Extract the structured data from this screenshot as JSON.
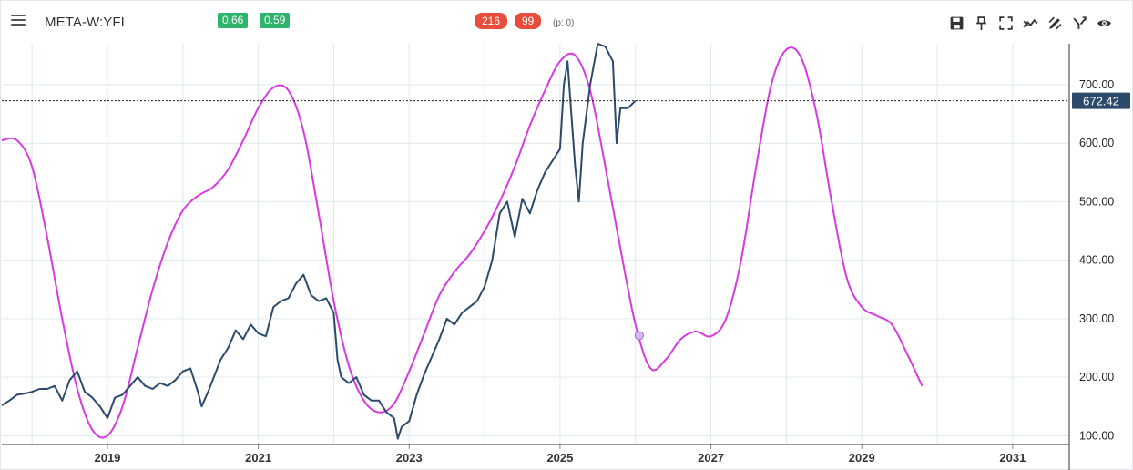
{
  "toolbar": {
    "symbol": "META-W:YFI",
    "badge_a": "0.66",
    "badge_b": "0.59",
    "badge_c": "216",
    "badge_d": "99",
    "p_count": "(p: 0)",
    "icons": [
      "save-icon",
      "pin-icon",
      "fullscreen-icon",
      "trend-icon",
      "draw-icon",
      "fork-icon",
      "eye-icon"
    ]
  },
  "colors": {
    "price": "#2c4a6b",
    "cycle": "#d63ae0",
    "badge_green": "#2fb46b",
    "badge_red": "#e74c3c",
    "last_price_label": "#2c4a6b",
    "grid": "#dde9ee"
  },
  "chart_data": {
    "type": "line",
    "title": "",
    "xlabel": "",
    "ylabel": "",
    "xlim": [
      2017.6,
      2031.75
    ],
    "ylim": [
      85,
      770
    ],
    "y_ticks": [
      "100.00",
      "200.00",
      "300.00",
      "400.00",
      "500.00",
      "600.00",
      "700.00"
    ],
    "x_ticks": [
      "2019",
      "2021",
      "2023",
      "2025",
      "2027",
      "2029",
      "2031"
    ],
    "last_price": "672.42",
    "series": [
      {
        "type": "price",
        "points": [
          [
            2017.6,
            152
          ],
          [
            2017.7,
            160
          ],
          [
            2017.8,
            170
          ],
          [
            2017.9,
            172
          ],
          [
            2018.0,
            175
          ],
          [
            2018.1,
            180
          ],
          [
            2018.2,
            180
          ],
          [
            2018.3,
            185
          ],
          [
            2018.4,
            160
          ],
          [
            2018.5,
            195
          ],
          [
            2018.6,
            210
          ],
          [
            2018.7,
            175
          ],
          [
            2018.8,
            165
          ],
          [
            2018.9,
            150
          ],
          [
            2019.0,
            130
          ],
          [
            2019.1,
            165
          ],
          [
            2019.2,
            170
          ],
          [
            2019.3,
            185
          ],
          [
            2019.4,
            200
          ],
          [
            2019.5,
            185
          ],
          [
            2019.6,
            180
          ],
          [
            2019.7,
            190
          ],
          [
            2019.8,
            185
          ],
          [
            2019.9,
            195
          ],
          [
            2020.0,
            210
          ],
          [
            2020.1,
            215
          ],
          [
            2020.2,
            175
          ],
          [
            2020.25,
            150
          ],
          [
            2020.35,
            180
          ],
          [
            2020.5,
            230
          ],
          [
            2020.6,
            250
          ],
          [
            2020.7,
            280
          ],
          [
            2020.8,
            265
          ],
          [
            2020.9,
            290
          ],
          [
            2021.0,
            275
          ],
          [
            2021.1,
            270
          ],
          [
            2021.2,
            320
          ],
          [
            2021.3,
            330
          ],
          [
            2021.4,
            335
          ],
          [
            2021.5,
            360
          ],
          [
            2021.6,
            375
          ],
          [
            2021.7,
            340
          ],
          [
            2021.8,
            330
          ],
          [
            2021.9,
            335
          ],
          [
            2022.0,
            310
          ],
          [
            2022.05,
            230
          ],
          [
            2022.1,
            200
          ],
          [
            2022.2,
            190
          ],
          [
            2022.3,
            200
          ],
          [
            2022.4,
            170
          ],
          [
            2022.5,
            160
          ],
          [
            2022.6,
            160
          ],
          [
            2022.7,
            140
          ],
          [
            2022.8,
            130
          ],
          [
            2022.85,
            95
          ],
          [
            2022.9,
            115
          ],
          [
            2023.0,
            125
          ],
          [
            2023.1,
            170
          ],
          [
            2023.2,
            205
          ],
          [
            2023.3,
            235
          ],
          [
            2023.4,
            265
          ],
          [
            2023.5,
            300
          ],
          [
            2023.6,
            290
          ],
          [
            2023.7,
            310
          ],
          [
            2023.8,
            320
          ],
          [
            2023.9,
            330
          ],
          [
            2024.0,
            355
          ],
          [
            2024.1,
            400
          ],
          [
            2024.2,
            480
          ],
          [
            2024.3,
            500
          ],
          [
            2024.4,
            440
          ],
          [
            2024.5,
            505
          ],
          [
            2024.6,
            480
          ],
          [
            2024.7,
            520
          ],
          [
            2024.8,
            550
          ],
          [
            2024.9,
            570
          ],
          [
            2025.0,
            590
          ],
          [
            2025.05,
            700
          ],
          [
            2025.1,
            740
          ],
          [
            2025.15,
            650
          ],
          [
            2025.2,
            560
          ],
          [
            2025.25,
            500
          ],
          [
            2025.3,
            600
          ],
          [
            2025.4,
            700
          ],
          [
            2025.5,
            770
          ],
          [
            2025.6,
            765
          ],
          [
            2025.7,
            740
          ],
          [
            2025.75,
            600
          ],
          [
            2025.8,
            660
          ],
          [
            2025.9,
            660
          ],
          [
            2026.0,
            672.42
          ]
        ]
      },
      {
        "type": "cycle",
        "points": [
          [
            2017.6,
            605
          ],
          [
            2017.8,
            605
          ],
          [
            2018.0,
            560
          ],
          [
            2018.2,
            440
          ],
          [
            2018.4,
            300
          ],
          [
            2018.6,
            180
          ],
          [
            2018.8,
            110
          ],
          [
            2019.0,
            100
          ],
          [
            2019.2,
            150
          ],
          [
            2019.4,
            250
          ],
          [
            2019.6,
            350
          ],
          [
            2019.8,
            430
          ],
          [
            2020.0,
            485
          ],
          [
            2020.2,
            510
          ],
          [
            2020.4,
            525
          ],
          [
            2020.6,
            555
          ],
          [
            2020.8,
            605
          ],
          [
            2021.0,
            660
          ],
          [
            2021.2,
            695
          ],
          [
            2021.4,
            690
          ],
          [
            2021.6,
            620
          ],
          [
            2021.8,
            480
          ],
          [
            2022.0,
            330
          ],
          [
            2022.2,
            220
          ],
          [
            2022.4,
            160
          ],
          [
            2022.6,
            140
          ],
          [
            2022.8,
            155
          ],
          [
            2023.0,
            210
          ],
          [
            2023.2,
            275
          ],
          [
            2023.4,
            340
          ],
          [
            2023.6,
            380
          ],
          [
            2023.8,
            410
          ],
          [
            2024.0,
            450
          ],
          [
            2024.2,
            500
          ],
          [
            2024.4,
            560
          ],
          [
            2024.6,
            630
          ],
          [
            2024.8,
            690
          ],
          [
            2025.0,
            740
          ],
          [
            2025.2,
            750
          ],
          [
            2025.4,
            690
          ],
          [
            2025.6,
            560
          ],
          [
            2025.8,
            420
          ],
          [
            2026.0,
            290
          ],
          [
            2026.2,
            215
          ],
          [
            2026.4,
            230
          ],
          [
            2026.6,
            265
          ],
          [
            2026.8,
            278
          ],
          [
            2027.0,
            270
          ],
          [
            2027.2,
            300
          ],
          [
            2027.4,
            400
          ],
          [
            2027.6,
            560
          ],
          [
            2027.8,
            700
          ],
          [
            2028.0,
            760
          ],
          [
            2028.2,
            745
          ],
          [
            2028.4,
            650
          ],
          [
            2028.6,
            500
          ],
          [
            2028.8,
            370
          ],
          [
            2029.0,
            320
          ],
          [
            2029.2,
            305
          ],
          [
            2029.4,
            290
          ],
          [
            2029.6,
            240
          ],
          [
            2029.8,
            185
          ]
        ]
      }
    ],
    "x_map": {
      "2018.95": 2018.95,
      "note_x": "x values are fractional years"
    }
  }
}
